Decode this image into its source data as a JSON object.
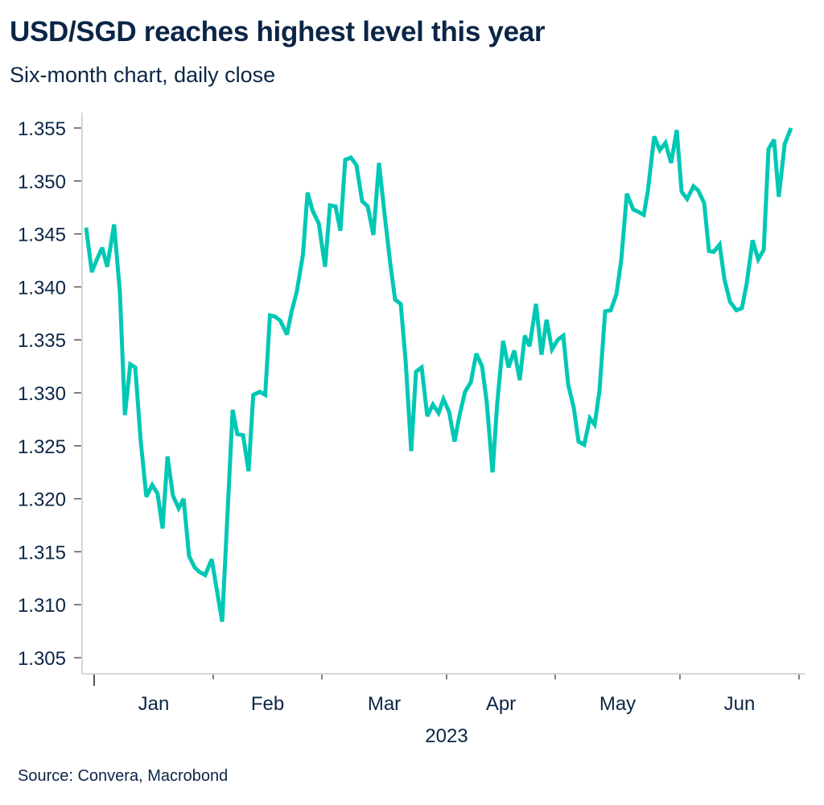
{
  "header": {
    "title": "USD/SGD reaches highest level this year",
    "subtitle": "Six-month chart, daily close"
  },
  "footer": {
    "source": "Source: Convera, Macrobond"
  },
  "colors": {
    "line": "#00c8b4",
    "text": "#0b2546",
    "axis": "#c8c8c8",
    "tick": "#555555"
  },
  "chart_data": {
    "type": "line",
    "title": "USD/SGD reaches highest level this year",
    "subtitle": "Six-month chart, daily close",
    "xlabel": "2023",
    "ylabel": "",
    "ylim": [
      1.3035,
      1.3565
    ],
    "yticks": [
      1.305,
      1.31,
      1.315,
      1.32,
      1.325,
      1.33,
      1.335,
      1.34,
      1.345,
      1.35,
      1.355
    ],
    "ytick_labels": [
      "1.305",
      "1.310",
      "1.315",
      "1.320",
      "1.325",
      "1.330",
      "1.335",
      "1.340",
      "1.345",
      "1.350",
      "1.355"
    ],
    "x_units": "days since 2023-01-01",
    "month_boundaries": [
      0,
      31,
      59,
      90,
      120,
      151,
      181
    ],
    "month_labels": [
      "Jan",
      "Feb",
      "Mar",
      "Apr",
      "May",
      "Jun"
    ],
    "year_label": "2023",
    "grid": false,
    "legend": "none",
    "source": "Source: Convera, Macrobond",
    "series": [
      {
        "name": "USD/SGD",
        "x": [
          -2.1,
          -0.6,
          0.6,
          2.1,
          3.4,
          5.2,
          6.7,
          8.0,
          9.4,
          10.7,
          12.1,
          13.6,
          15.1,
          16.5,
          17.8,
          19.1,
          20.5,
          22.0,
          23.3,
          24.7,
          26.2,
          27.4,
          28.9,
          30.6,
          31.6,
          33.3,
          36.0,
          37.2,
          38.7,
          40.1,
          41.3,
          43.0,
          44.4,
          45.6,
          46.9,
          48.3,
          50.0,
          51.2,
          52.5,
          54.1,
          55.3,
          56.6,
          58.2,
          59.8,
          61.0,
          62.4,
          63.6,
          64.8,
          66.2,
          67.6,
          69.0,
          70.4,
          71.8,
          73.2,
          74.6,
          76.0,
          77.2,
          78.6,
          79.8,
          81.2,
          82.4,
          83.8,
          85.2,
          86.6,
          88.0,
          89.2,
          90.7,
          92.2,
          93.5,
          95.1,
          96.7,
          98.2,
          99.8,
          101.1,
          102.7,
          104.0,
          105.6,
          107.1,
          108.7,
          110.2,
          111.6,
          112.9,
          114.7,
          116.2,
          117.6,
          119.1,
          120.6,
          122.0,
          123.2,
          124.6,
          125.8,
          127.2,
          128.6,
          129.8,
          131.0,
          132.4,
          133.8,
          135.2,
          136.4,
          137.8,
          139.4,
          140.6,
          142.0,
          143.0,
          144.6,
          146.0,
          147.4,
          148.8,
          150.2,
          151.4,
          152.8,
          154.4,
          155.6,
          157.1,
          158.3,
          159.5,
          161.0,
          162.2,
          163.6,
          165.2,
          166.6,
          167.8,
          169.3,
          170.7,
          172.1,
          173.3,
          174.7,
          175.9,
          177.4,
          179.0
        ],
        "values": [
          1.3456,
          1.3414,
          1.3425,
          1.3437,
          1.3419,
          1.3459,
          1.3395,
          1.3279,
          1.3327,
          1.3324,
          1.3255,
          1.3202,
          1.3213,
          1.3205,
          1.3172,
          1.324,
          1.3203,
          1.3191,
          1.32,
          1.3146,
          1.3135,
          1.3131,
          1.3128,
          1.3143,
          1.3121,
          1.3084,
          1.3284,
          1.3261,
          1.326,
          1.3226,
          1.3298,
          1.3301,
          1.3298,
          1.3373,
          1.3372,
          1.3368,
          1.3355,
          1.3377,
          1.3395,
          1.343,
          1.3489,
          1.3472,
          1.346,
          1.3419,
          1.3477,
          1.3476,
          1.3453,
          1.352,
          1.3522,
          1.3515,
          1.3481,
          1.3476,
          1.3449,
          1.3517,
          1.3468,
          1.3422,
          1.3388,
          1.3384,
          1.3331,
          1.3245,
          1.332,
          1.3324,
          1.3278,
          1.3289,
          1.3281,
          1.3294,
          1.3282,
          1.3254,
          1.3278,
          1.3301,
          1.331,
          1.3337,
          1.3325,
          1.3291,
          1.3225,
          1.3291,
          1.3349,
          1.3324,
          1.334,
          1.3312,
          1.3354,
          1.3344,
          1.3384,
          1.3336,
          1.3369,
          1.3341,
          1.335,
          1.3354,
          1.3308,
          1.3286,
          1.3254,
          1.3251,
          1.3276,
          1.327,
          1.3302,
          1.3377,
          1.3378,
          1.3393,
          1.3425,
          1.3488,
          1.3473,
          1.3471,
          1.3468,
          1.349,
          1.3542,
          1.3529,
          1.3536,
          1.3517,
          1.3548,
          1.349,
          1.3483,
          1.3495,
          1.3491,
          1.3479,
          1.3434,
          1.3433,
          1.344,
          1.3407,
          1.3386,
          1.3378,
          1.338,
          1.3403,
          1.3444,
          1.3426,
          1.3435,
          1.353,
          1.3539,
          1.3485,
          1.3535,
          1.355
        ]
      }
    ]
  }
}
